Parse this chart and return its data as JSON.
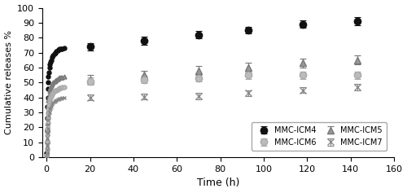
{
  "title": "",
  "xlabel": "Time (h)",
  "ylabel": "Cumulative releases %",
  "xlim": [
    -2,
    160
  ],
  "ylim": [
    0,
    100
  ],
  "xticks": [
    0,
    20,
    40,
    60,
    80,
    100,
    120,
    140,
    160
  ],
  "yticks": [
    0,
    10,
    20,
    30,
    40,
    50,
    60,
    70,
    80,
    90,
    100
  ],
  "series": [
    {
      "label": "MMC-ICM4",
      "color": "#111111",
      "marker": "o",
      "markerfacecolor": "#111111",
      "markersize": 6,
      "early_x": [
        0.08,
        0.17,
        0.25,
        0.33,
        0.42,
        0.5,
        0.58,
        0.67,
        0.83,
        1.0,
        1.25,
        1.5,
        1.75,
        2.0,
        2.5,
        3.0,
        3.5,
        4.0,
        4.5,
        5.0,
        5.5,
        6.0,
        6.5,
        7.0,
        8.0
      ],
      "early_y": [
        3,
        10,
        18,
        26,
        34,
        40,
        46,
        50,
        54,
        57,
        60,
        62,
        64,
        65,
        67,
        68,
        69,
        70,
        71,
        71.5,
        72,
        72.3,
        72.5,
        72.7,
        73
      ],
      "x": [
        20,
        45,
        70,
        93,
        118,
        143
      ],
      "y": [
        74,
        78,
        82,
        85,
        89,
        91
      ],
      "yerr": [
        2.5,
        2.5,
        2.5,
        2.0,
        2.5,
        2.5
      ]
    },
    {
      "label": "MMC-ICM5",
      "color": "#777777",
      "marker": "^",
      "markerfacecolor": "#999999",
      "markersize": 6,
      "early_x": [
        0.08,
        0.17,
        0.25,
        0.33,
        0.42,
        0.5,
        0.58,
        0.67,
        0.83,
        1.0,
        1.25,
        1.5,
        1.75,
        2.0,
        2.5,
        3.0,
        3.5,
        4.0,
        4.5,
        5.0,
        5.5,
        6.0,
        6.5,
        7.0,
        8.0
      ],
      "early_y": [
        2,
        7,
        12,
        18,
        23,
        27,
        31,
        35,
        38,
        41,
        44,
        46,
        47,
        48,
        49,
        50,
        51,
        51.5,
        52,
        52.5,
        53,
        53.2,
        53.5,
        53.7,
        54
      ],
      "x": [
        20,
        45,
        70,
        93,
        118,
        143
      ],
      "y": [
        52,
        55,
        58,
        60,
        63,
        65
      ],
      "yerr": [
        3,
        3,
        3,
        3,
        3,
        3
      ]
    },
    {
      "label": "MMC-ICM6",
      "color": "#aaaaaa",
      "marker": "o",
      "markerfacecolor": "#bbbbbb",
      "markersize": 6,
      "early_x": [
        0.08,
        0.17,
        0.25,
        0.33,
        0.42,
        0.5,
        0.58,
        0.67,
        0.83,
        1.0,
        1.25,
        1.5,
        1.75,
        2.0,
        2.5,
        3.0,
        3.5,
        4.0,
        4.5,
        5.0,
        5.5,
        6.0,
        6.5,
        7.0,
        8.0
      ],
      "early_y": [
        1,
        5,
        10,
        15,
        19,
        23,
        26,
        29,
        32,
        35,
        37,
        39,
        40,
        41,
        42,
        43,
        44,
        44.5,
        45,
        45.5,
        46,
        46.2,
        46.5,
        46.7,
        47
      ],
      "x": [
        20,
        45,
        70,
        93,
        118,
        143
      ],
      "y": [
        51,
        52,
        53,
        55,
        55,
        55
      ],
      "yerr": [
        2.5,
        2.5,
        2.5,
        2.5,
        2.5,
        2.5
      ]
    },
    {
      "label": "MMC-ICM7",
      "color": "#888888",
      "marker": "x",
      "markerfacecolor": "#888888",
      "markersize": 6,
      "early_x": [
        0.08,
        0.17,
        0.25,
        0.33,
        0.42,
        0.5,
        0.58,
        0.67,
        0.83,
        1.0,
        1.25,
        1.5,
        1.75,
        2.0,
        2.5,
        3.0,
        3.5,
        4.0,
        4.5,
        5.0,
        5.5,
        6.0,
        6.5,
        7.0,
        8.0
      ],
      "early_y": [
        0.3,
        2,
        5,
        9,
        13,
        16,
        19,
        22,
        25,
        28,
        30,
        32,
        33,
        34,
        35.5,
        36.5,
        37,
        37.5,
        38,
        38.5,
        39,
        39.2,
        39.5,
        39.7,
        40
      ],
      "x": [
        20,
        45,
        70,
        93,
        118,
        143
      ],
      "y": [
        40,
        40.5,
        41,
        43,
        45,
        47
      ],
      "yerr": [
        2,
        2,
        2,
        2,
        2,
        2
      ]
    }
  ],
  "legend_order": [
    0,
    2,
    1,
    3
  ],
  "legend_labels": [
    "MMC-ICM4",
    "MMC-ICM5",
    "MMC-ICM6",
    "MMC-ICM7"
  ],
  "figsize": [
    5.0,
    2.37
  ],
  "dpi": 100
}
